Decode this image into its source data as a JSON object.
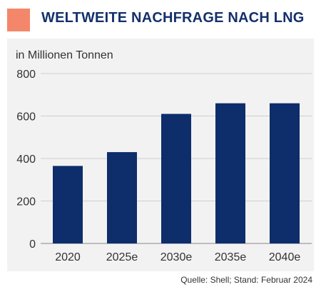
{
  "header": {
    "title": "WELTWEITE NACHFRAGE NACH LNG",
    "accent_color": "#f4876a"
  },
  "source_note": "Quelle: Shell; Stand: Februar 2024",
  "colors": {
    "bar": "#0d2d6b",
    "title": "#14306b",
    "panel_bg": "#f2f2f2",
    "grid": "#cfcfcf"
  },
  "chart_data": {
    "type": "bar",
    "title": "WELTWEITE NACHFRAGE NACH LNG",
    "ylabel": "in Millionen Tonnen",
    "xlabel": "",
    "categories": [
      "2020",
      "2025e",
      "2030e",
      "2035e",
      "2040e"
    ],
    "values": [
      365,
      430,
      610,
      660,
      660
    ],
    "ylim": [
      0,
      800
    ],
    "yticks": [
      0,
      200,
      400,
      600,
      800
    ],
    "grid": true
  }
}
